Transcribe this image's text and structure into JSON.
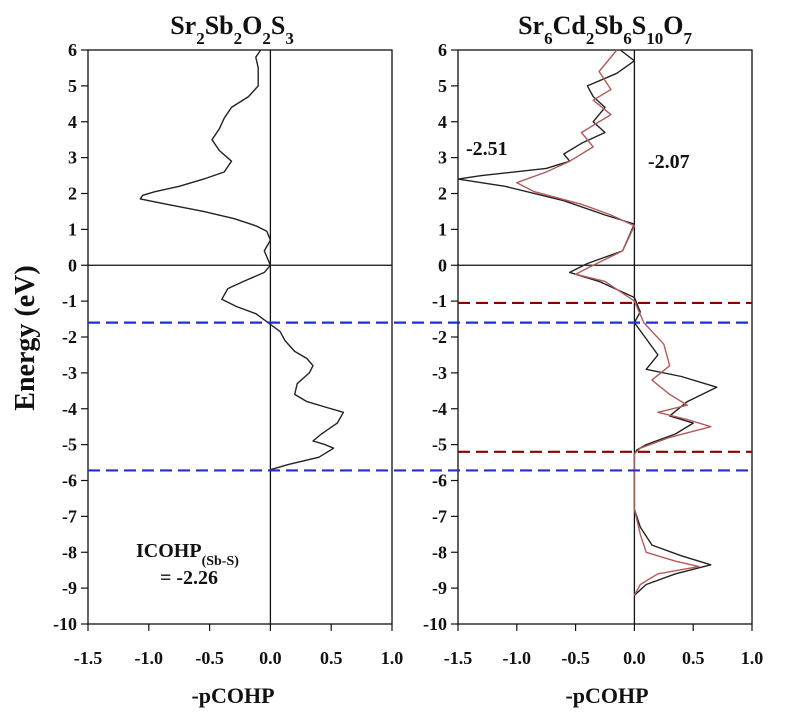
{
  "colors": {
    "axis": "#111111",
    "black_curve": "#222222",
    "red_curve": "#b35a5a",
    "red_text": "#a31515",
    "blue_dash": "#1f2fd0",
    "red_dash": "#8b0000"
  },
  "ylabel": "Energy (eV)",
  "chart_data": [
    {
      "type": "line",
      "title_parts": {
        "sr": "Sr",
        "sr_sub": "2",
        "sb": "Sb",
        "sb_sub": "2",
        "o": "O",
        "o_sub": "2",
        "s": "S",
        "s_sub": "3"
      },
      "xlabel": "-pCOHP",
      "xlim": [
        -1.5,
        1.0
      ],
      "ylim": [
        -10,
        6
      ],
      "xticks": [
        "-1.5",
        "-1.0",
        "-0.5",
        "0.0",
        "0.5",
        "1.0"
      ],
      "yticks": [
        "6",
        "5",
        "4",
        "3",
        "2",
        "1",
        "0",
        "-1",
        "-2",
        "-3",
        "-4",
        "-5",
        "-6",
        "-7",
        "-8",
        "-9",
        "-10"
      ],
      "annotation": {
        "main": "ICOHP",
        "sub": "(Sb-S)",
        "value": "= -2.26"
      },
      "series": [
        {
          "color_key": "black_curve",
          "x": [
            -0.08,
            -0.12,
            -0.1,
            -0.1,
            -0.18,
            -0.32,
            -0.38,
            -0.42,
            -0.48,
            -0.42,
            -0.32,
            -0.38,
            -0.55,
            -0.75,
            -0.95,
            -1.05,
            -1.07,
            -0.85,
            -0.55,
            -0.3,
            -0.12,
            -0.03,
            0.0,
            -0.05,
            0.0,
            -0.05,
            -0.22,
            -0.35,
            -0.4,
            -0.28,
            -0.12,
            -0.02,
            0.08,
            0.12,
            0.2,
            0.3,
            0.35,
            0.32,
            0.22,
            0.2,
            0.3,
            0.45,
            0.6,
            0.55,
            0.42,
            0.35,
            0.45,
            0.52,
            0.4,
            0.15,
            0.0
          ],
          "y": [
            6.0,
            5.8,
            5.5,
            5.0,
            4.7,
            4.4,
            4.1,
            3.8,
            3.5,
            3.2,
            2.9,
            2.6,
            2.4,
            2.2,
            2.05,
            1.95,
            1.85,
            1.7,
            1.5,
            1.3,
            1.1,
            0.95,
            0.7,
            0.4,
            0.0,
            -0.2,
            -0.45,
            -0.65,
            -0.95,
            -1.15,
            -1.35,
            -1.6,
            -1.85,
            -2.1,
            -2.4,
            -2.6,
            -2.8,
            -3.0,
            -3.3,
            -3.6,
            -3.8,
            -3.95,
            -4.1,
            -4.4,
            -4.7,
            -4.9,
            -5.0,
            -5.1,
            -5.35,
            -5.55,
            -5.7
          ]
        }
      ],
      "hlines": [
        {
          "y": -1.6,
          "color_key": "blue_dash"
        },
        {
          "y": -5.72,
          "color_key": "blue_dash"
        }
      ]
    },
    {
      "type": "line",
      "title_parts": {
        "sr": "Sr",
        "sr_sub": "6",
        "cd": "Cd",
        "cd_sub": "2",
        "sb": "Sb",
        "sb_sub": "6",
        "s": "S",
        "s_sub": "10",
        "o": "O",
        "o_sub": "7"
      },
      "xlabel": "-pCOHP",
      "xlim": [
        -1.5,
        1.0
      ],
      "ylim": [
        -10,
        6
      ],
      "xticks": [
        "-1.5",
        "-1.0",
        "-0.5",
        "0.0",
        "0.5",
        "1.0"
      ],
      "yticks": [
        "6",
        "5",
        "4",
        "3",
        "2",
        "1",
        "0",
        "-1",
        "-2",
        "-3",
        "-4",
        "-5",
        "-6",
        "-7",
        "-8",
        "-9",
        "-10"
      ],
      "annotations": [
        {
          "text": "-2.51",
          "color_key": "black_curve"
        },
        {
          "text": "-2.07",
          "color_key": "red_text"
        }
      ],
      "series": [
        {
          "color_key": "black_curve",
          "x": [
            -0.12,
            0.0,
            -0.15,
            -0.4,
            -0.35,
            -0.25,
            -0.35,
            -0.25,
            -0.45,
            -0.6,
            -0.55,
            -0.75,
            -1.3,
            -1.5,
            -1.1,
            -0.6,
            -0.25,
            0.0,
            -0.1,
            -0.4,
            -0.55,
            -0.3,
            0.0,
            0.05,
            0.0,
            0.2,
            0.1,
            0.4,
            0.7,
            0.45,
            0.3,
            0.5,
            0.35,
            0.1,
            0.02,
            0.0,
            0.0,
            0.05,
            0.15,
            0.4,
            0.65,
            0.35,
            0.1,
            0.0
          ],
          "y": [
            6.0,
            5.7,
            5.35,
            5.0,
            4.7,
            4.4,
            4.0,
            3.7,
            3.4,
            3.1,
            2.9,
            2.7,
            2.5,
            2.4,
            2.2,
            1.8,
            1.4,
            1.15,
            0.4,
            0.05,
            -0.2,
            -0.45,
            -0.9,
            -1.3,
            -1.6,
            -2.5,
            -2.9,
            -3.1,
            -3.4,
            -3.8,
            -4.2,
            -4.4,
            -4.7,
            -5.0,
            -5.15,
            -5.25,
            -6.8,
            -7.3,
            -7.8,
            -8.1,
            -8.35,
            -8.6,
            -8.9,
            -9.2
          ]
        },
        {
          "color_key": "red_curve",
          "x": [
            -0.15,
            -0.3,
            -0.2,
            -0.35,
            -0.2,
            -0.45,
            -0.35,
            -0.55,
            -0.75,
            -1.0,
            -0.85,
            -0.45,
            -0.2,
            0.0,
            -0.1,
            -0.35,
            -0.5,
            -0.25,
            0.0,
            0.08,
            0.25,
            0.3,
            0.15,
            0.3,
            0.45,
            0.2,
            0.45,
            0.65,
            0.3,
            0.05,
            0.0,
            0.0,
            0.05,
            0.1,
            0.35,
            0.55,
            0.2,
            0.05,
            0.0
          ],
          "y": [
            6.0,
            5.4,
            4.9,
            4.6,
            4.2,
            3.7,
            3.3,
            2.9,
            2.6,
            2.3,
            2.05,
            1.7,
            1.4,
            1.1,
            0.4,
            0.0,
            -0.25,
            -0.45,
            -1.0,
            -1.6,
            -2.2,
            -2.8,
            -3.2,
            -3.6,
            -3.9,
            -4.1,
            -4.3,
            -4.5,
            -4.8,
            -5.1,
            -5.25,
            -6.8,
            -7.5,
            -8.0,
            -8.25,
            -8.4,
            -8.6,
            -8.9,
            -9.2
          ]
        }
      ],
      "hlines": [
        {
          "y": -1.05,
          "color_key": "red_dash"
        },
        {
          "y": -1.6,
          "color_key": "blue_dash"
        },
        {
          "y": -5.2,
          "color_key": "red_dash"
        },
        {
          "y": -5.72,
          "color_key": "blue_dash"
        }
      ]
    }
  ]
}
